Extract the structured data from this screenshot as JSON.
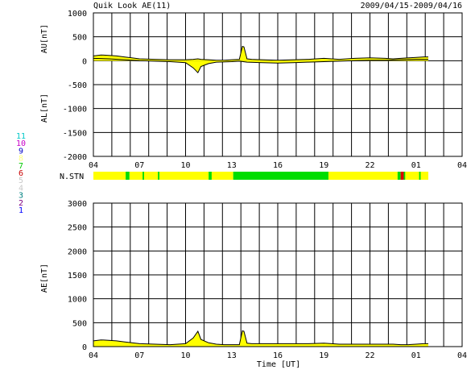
{
  "header": {
    "title": "Quik Look AE(11)",
    "date_range": "2009/04/15-2009/04/16"
  },
  "chart_data": [
    {
      "type": "area",
      "panel": "AU/AL",
      "ylabel_upper": "AU[nT]",
      "ylabel_lower": "AL[nT]",
      "ylim": [
        -2000,
        1000
      ],
      "yticks": [
        1000,
        500,
        0,
        -500,
        -1000,
        -1500,
        -2000
      ],
      "x_start_hour_ut": 4,
      "x_span_hours": 24,
      "xtick_labels": [
        "04",
        "07",
        "10",
        "13",
        "16",
        "19",
        "22",
        "01",
        "04"
      ],
      "grid": true,
      "data_end_hour_ut": 25.8,
      "series": [
        {
          "color": "#ffff00",
          "x": [
            4.0,
            4.5,
            5.0,
            5.5,
            6.0,
            6.5,
            7.0,
            8.0,
            9.0,
            10.0,
            10.5,
            10.8,
            11.0,
            11.5,
            12.0,
            12.5,
            13.0,
            13.5,
            13.7,
            13.8,
            14.0,
            14.3,
            15.0,
            16.0,
            17.0,
            18.0,
            19.0,
            19.5,
            20.0,
            21.0,
            22.0,
            23.0,
            23.5,
            24.0,
            24.5,
            25.0,
            25.5,
            25.8
          ],
          "y": [
            100,
            120,
            110,
            100,
            80,
            60,
            40,
            30,
            20,
            20,
            30,
            40,
            30,
            20,
            10,
            10,
            20,
            30,
            300,
            290,
            40,
            30,
            20,
            10,
            20,
            30,
            50,
            40,
            30,
            50,
            60,
            50,
            40,
            50,
            60,
            70,
            80,
            80
          ]
        },
        {
          "color": "#ffff00",
          "x": [
            4.0,
            5.0,
            6.0,
            7.0,
            8.0,
            9.0,
            10.0,
            10.5,
            10.8,
            11.0,
            11.5,
            12.0,
            13.0,
            13.5,
            14.0,
            15.0,
            16.0,
            17.0,
            18.0,
            19.0,
            20.0,
            21.0,
            22.0,
            23.0,
            24.0,
            25.0,
            25.8
          ],
          "y": [
            50,
            40,
            20,
            0,
            -10,
            -20,
            -40,
            -150,
            -250,
            -120,
            -60,
            -30,
            -20,
            -10,
            -30,
            -40,
            -50,
            -40,
            -30,
            -20,
            -10,
            0,
            10,
            10,
            20,
            30,
            30
          ]
        }
      ]
    },
    {
      "type": "table",
      "panel": "N.STN",
      "label": "N.STN",
      "legend_numbers": [
        "11",
        "10",
        "9",
        "8",
        "7",
        "6",
        "5",
        "4",
        "3",
        "2",
        "1"
      ],
      "legend_colors": [
        "#00c8c8",
        "#c800c8",
        "#0000c8",
        "#ffff80",
        "#00c800",
        "#c80000",
        "#c8c8c8",
        "#c8c8c8",
        "#008080",
        "#800080",
        "#0000ff"
      ],
      "segments": [
        {
          "start": 4.0,
          "end": 6.1,
          "color": "#ffff00"
        },
        {
          "start": 6.1,
          "end": 6.35,
          "color": "#00dd00"
        },
        {
          "start": 6.35,
          "end": 7.2,
          "color": "#ffff00"
        },
        {
          "start": 7.2,
          "end": 7.3,
          "color": "#00dd00"
        },
        {
          "start": 7.3,
          "end": 8.2,
          "color": "#ffff00"
        },
        {
          "start": 8.2,
          "end": 8.3,
          "color": "#00dd00"
        },
        {
          "start": 8.3,
          "end": 11.5,
          "color": "#ffff00"
        },
        {
          "start": 11.5,
          "end": 11.7,
          "color": "#00dd00"
        },
        {
          "start": 11.7,
          "end": 13.1,
          "color": "#ffff00"
        },
        {
          "start": 13.1,
          "end": 19.3,
          "color": "#00dd00"
        },
        {
          "start": 19.3,
          "end": 23.8,
          "color": "#ffff00"
        },
        {
          "start": 23.8,
          "end": 24.0,
          "color": "#00dd00"
        },
        {
          "start": 24.0,
          "end": 24.2,
          "color": "#dd0000"
        },
        {
          "start": 24.2,
          "end": 24.3,
          "color": "#00dd00"
        },
        {
          "start": 24.3,
          "end": 25.2,
          "color": "#ffff00"
        },
        {
          "start": 25.2,
          "end": 25.3,
          "color": "#00dd00"
        },
        {
          "start": 25.3,
          "end": 25.8,
          "color": "#ffff00"
        }
      ]
    },
    {
      "type": "area",
      "panel": "AE",
      "ylabel": "AE[nT]",
      "xlabel": "Time [UT]",
      "ylim": [
        0,
        3000
      ],
      "yticks": [
        3000,
        2500,
        2000,
        1500,
        1000,
        500,
        0
      ],
      "x_start_hour_ut": 4,
      "x_span_hours": 24,
      "xtick_labels": [
        "04",
        "07",
        "10",
        "13",
        "16",
        "19",
        "22",
        "01",
        "04"
      ],
      "grid": true,
      "series": [
        {
          "color": "#ffff00",
          "x": [
            4.0,
            4.5,
            5.0,
            5.5,
            6.0,
            6.5,
            7.0,
            8.0,
            9.0,
            10.0,
            10.5,
            10.8,
            11.0,
            11.5,
            12.0,
            12.5,
            13.0,
            13.5,
            13.7,
            13.8,
            14.0,
            14.3,
            15.0,
            16.0,
            17.0,
            18.0,
            19.0,
            19.5,
            20.0,
            21.0,
            22.0,
            23.0,
            23.5,
            24.0,
            24.5,
            25.0,
            25.5,
            25.8
          ],
          "y": [
            120,
            140,
            130,
            120,
            100,
            80,
            60,
            50,
            40,
            60,
            180,
            320,
            150,
            80,
            50,
            40,
            40,
            40,
            330,
            320,
            70,
            60,
            60,
            60,
            60,
            60,
            70,
            60,
            50,
            50,
            50,
            50,
            50,
            40,
            40,
            50,
            60,
            60
          ]
        }
      ]
    }
  ]
}
